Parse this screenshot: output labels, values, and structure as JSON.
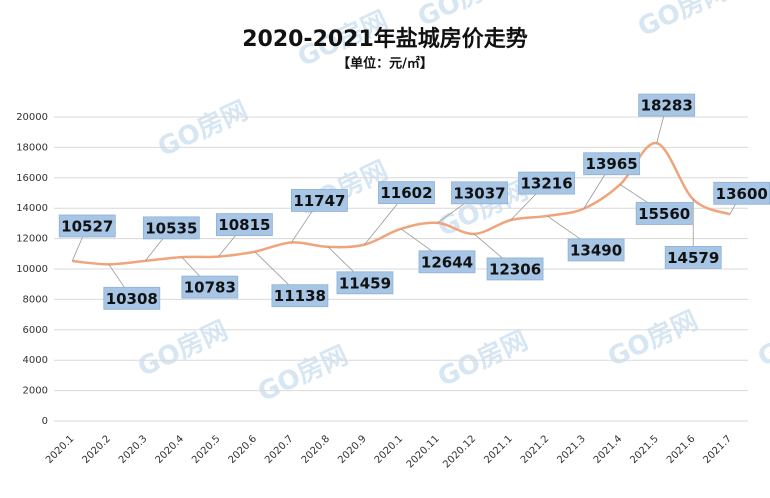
{
  "chart_data": {
    "type": "line",
    "title": "2020-2021年盐城房价走势",
    "subtitle": "【单位：元/㎡】",
    "watermark": "GO房网",
    "categories": [
      "2020.1",
      "2020.2",
      "2020.3",
      "2020.4",
      "2020.5",
      "2020.6",
      "2020.7",
      "2020.8",
      "2020.9",
      "2020.1",
      "2020.11",
      "2020.12",
      "2021.1",
      "2021.2",
      "2021.3",
      "2021.4",
      "2021.5",
      "2021.6",
      "2021.7"
    ],
    "series": [
      {
        "name": "房价",
        "color": "#f0a47c",
        "values": [
          10527,
          10308,
          10535,
          10783,
          10815,
          11138,
          11747,
          11459,
          11602,
          12644,
          13037,
          12306,
          13216,
          13490,
          13965,
          15560,
          18283,
          14579,
          13600
        ]
      }
    ],
    "ylim": [
      0,
      20000
    ],
    "yticks": [
      0,
      2000,
      4000,
      6000,
      8000,
      10000,
      12000,
      14000,
      16000,
      18000,
      20000
    ],
    "grid": true,
    "label_box_color": "#a7c6e6"
  }
}
